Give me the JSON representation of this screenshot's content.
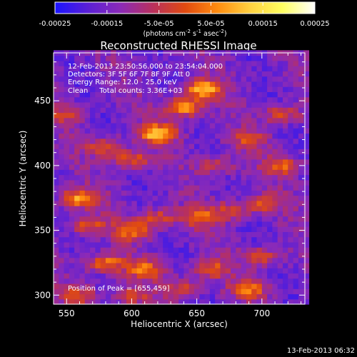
{
  "chart_data": {
    "type": "heatmap",
    "title": "Reconstructed RHESSI Image",
    "xlabel": "Heliocentric X (arcsec)",
    "ylabel": "Heliocentric Y (arcsec)",
    "xlim": [
      540,
      733
    ],
    "ylim": [
      293,
      487
    ],
    "x_ticks": [
      550,
      600,
      650,
      700
    ],
    "y_ticks": [
      300,
      350,
      400,
      450
    ],
    "colorbar": {
      "range": [
        -0.00025,
        0.00025
      ],
      "tick_values": [
        -0.00025,
        -0.00015,
        -5e-05,
        5e-05,
        0.00015,
        0.00025
      ],
      "tick_labels": [
        "-0.00025",
        "-0.00015",
        "-5.0e-05",
        "5.0e-05",
        "0.00015",
        "0.00025"
      ],
      "units_parts": [
        "(photons cm",
        "-2",
        " s",
        "-1",
        " asec",
        "-2",
        ")"
      ],
      "colormap": [
        "#1a14ff",
        "#5a1fd6",
        "#8a2ab8",
        "#b8305e",
        "#e04a10",
        "#ff8c10",
        "#ffd040",
        "#ffff60",
        "#ffffff"
      ]
    },
    "annotations": [
      "12-Feb-2013 23:50:56.000 to 23:54:04.000",
      "Detectors: 3F 5F 6F 7F 8F 9F  Att 0",
      "Energy Range: 12.0 - 25.0 keV",
      "Clean     Total counts: 3.36E+03"
    ],
    "peak_label": "Position of Peak = [655,459]",
    "peak_position": [
      655,
      459
    ],
    "pixel_size_arcsec": 4,
    "blobs": [
      {
        "x": 620,
        "y": 425,
        "amp": 1.0
      },
      {
        "x": 640,
        "y": 445,
        "amp": 0.9
      },
      {
        "x": 655,
        "y": 459,
        "amp": 1.0
      },
      {
        "x": 600,
        "y": 405,
        "amp": 0.6
      },
      {
        "x": 580,
        "y": 415,
        "amp": 0.55
      },
      {
        "x": 560,
        "y": 375,
        "amp": 0.85
      },
      {
        "x": 565,
        "y": 355,
        "amp": 0.6
      },
      {
        "x": 600,
        "y": 350,
        "amp": 0.7
      },
      {
        "x": 620,
        "y": 360,
        "amp": 0.55
      },
      {
        "x": 650,
        "y": 360,
        "amp": 0.6
      },
      {
        "x": 675,
        "y": 365,
        "amp": 0.5
      },
      {
        "x": 700,
        "y": 370,
        "amp": 0.55
      },
      {
        "x": 580,
        "y": 325,
        "amp": 0.75
      },
      {
        "x": 610,
        "y": 320,
        "amp": 0.65
      },
      {
        "x": 660,
        "y": 320,
        "amp": 0.6
      },
      {
        "x": 700,
        "y": 330,
        "amp": 0.55
      },
      {
        "x": 560,
        "y": 300,
        "amp": 0.5
      },
      {
        "x": 600,
        "y": 300,
        "amp": 0.5
      },
      {
        "x": 690,
        "y": 305,
        "amp": 0.65
      },
      {
        "x": 715,
        "y": 400,
        "amp": 0.6
      },
      {
        "x": 715,
        "y": 440,
        "amp": 0.55
      },
      {
        "x": 690,
        "y": 420,
        "amp": 0.45
      },
      {
        "x": 550,
        "y": 440,
        "amp": 0.4
      },
      {
        "x": 665,
        "y": 400,
        "amp": 0.45
      },
      {
        "x": 640,
        "y": 305,
        "amp": 0.5
      }
    ]
  },
  "footer": {
    "timestamp": "13-Feb-2013 06:32"
  }
}
